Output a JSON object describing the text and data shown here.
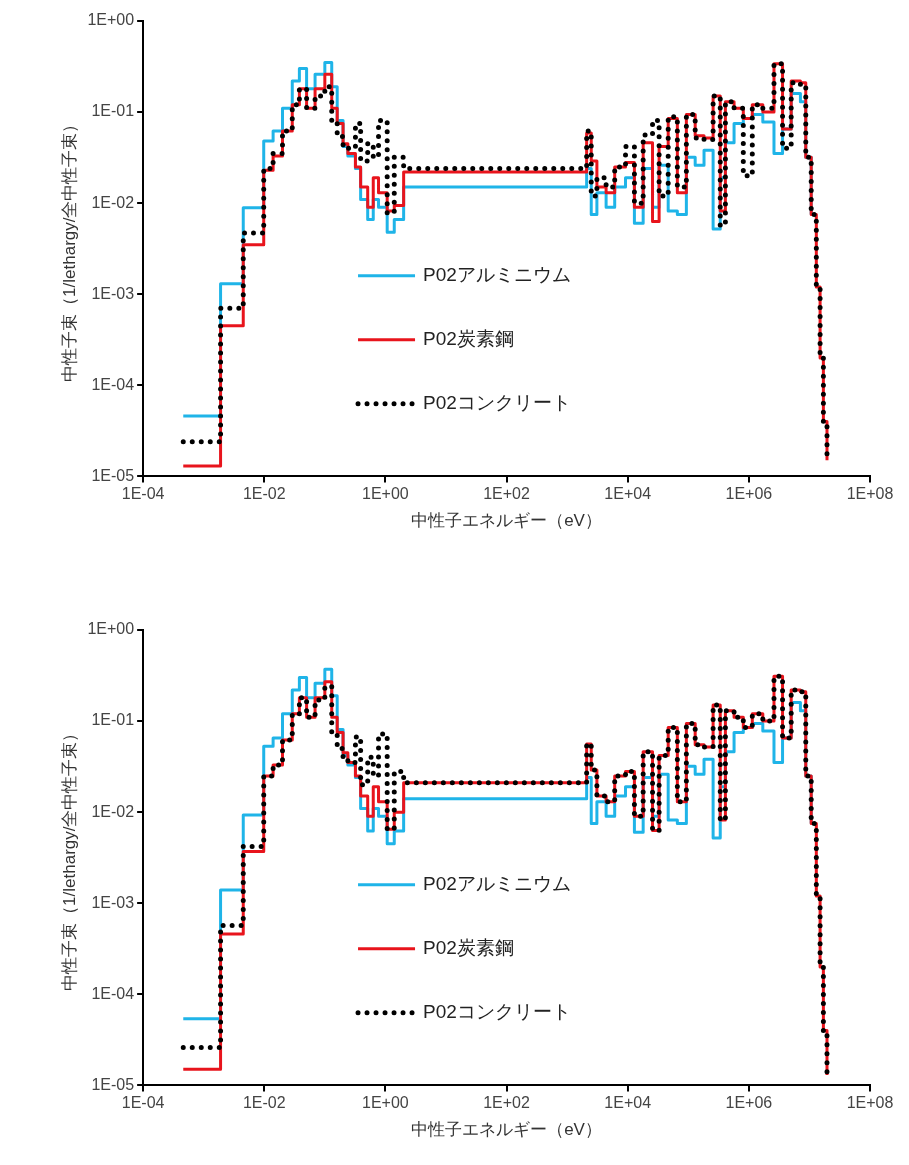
{
  "chart_data": [
    {
      "type": "step",
      "xlabel": "中性子エネルギー（eV）",
      "ylabel": "中性子束（1/lethargy/全中性子束）",
      "log": "xy",
      "grid": false,
      "legend": "center",
      "xlim": [
        0.0001,
        100000000
      ],
      "ylim": [
        1e-05,
        1
      ],
      "xticks": [
        {
          "value": 0.0001,
          "label": "1E-04"
        },
        {
          "value": 0.01,
          "label": "1E-02"
        },
        {
          "value": 1,
          "label": "1E+00"
        },
        {
          "value": 100,
          "label": "1E+02"
        },
        {
          "value": 10000,
          "label": "1E+04"
        },
        {
          "value": 1000000,
          "label": "1E+06"
        },
        {
          "value": 100000000,
          "label": "1E+08"
        }
      ],
      "yticks": [
        {
          "value": 1e-05,
          "label": "1E-05"
        },
        {
          "value": 0.0001,
          "label": "1E-04"
        },
        {
          "value": 0.001,
          "label": "1E-03"
        },
        {
          "value": 0.01,
          "label": "1E-02"
        },
        {
          "value": 0.1,
          "label": "1E-01"
        },
        {
          "value": 1,
          "label": "1E+00"
        }
      ],
      "x": [
        0.00046,
        0.0019,
        0.0045,
        0.0098,
        0.014,
        0.02,
        0.029,
        0.038,
        0.05,
        0.069,
        0.1,
        0.13,
        0.16,
        0.2,
        0.24,
        0.32,
        0.39,
        0.51,
        0.63,
        0.77,
        1.07,
        1.4,
        2,
        2100,
        2500,
        3100,
        4400,
        6100,
        9200,
        12900,
        18000,
        25700,
        33000,
        46600,
        66000,
        93000,
        130000,
        182000,
        257000,
        337000,
        410000,
        570000,
        810000,
        1140000,
        1700000,
        2600000,
        3600000,
        5000000,
        7100000,
        8700000,
        10700000,
        13000000,
        15000000,
        17000000,
        19500000
      ],
      "series": [
        {
          "name": "P02アルミニウム",
          "color": "#1fb4e8",
          "line_style": "solid",
          "values": [
            4.6e-05,
            0.0013,
            0.0089,
            0.048,
            0.062,
            0.11,
            0.22,
            0.3,
            0.18,
            0.26,
            0.35,
            0.19,
            0.081,
            0.042,
            0.033,
            0.024,
            0.011,
            0.0066,
            0.011,
            0.009,
            0.0048,
            0.0066,
            0.015,
            0.024,
            0.0075,
            0.013,
            0.009,
            0.015,
            0.019,
            0.006,
            0.024,
            0.009,
            0.026,
            0.0082,
            0.0075,
            0.032,
            0.026,
            0.038,
            0.0052,
            0.019,
            0.046,
            0.075,
            0.085,
            0.094,
            0.078,
            0.035,
            0.065,
            0.16,
            0.13,
            0.032,
            0.0075,
            null,
            null,
            null,
            null
          ]
        },
        {
          "name": "P02炭素鋼",
          "color": "#e8141c",
          "line_style": "solid",
          "values": [
            1.3e-05,
            0.00045,
            0.0035,
            0.023,
            0.033,
            0.062,
            0.12,
            0.18,
            0.11,
            0.18,
            0.26,
            0.11,
            0.075,
            0.045,
            0.035,
            0.025,
            0.015,
            0.009,
            0.019,
            0.013,
            0.0082,
            0.0094,
            0.022,
            0.059,
            0.029,
            0.015,
            0.013,
            0.025,
            0.028,
            0.009,
            0.046,
            0.0063,
            0.042,
            0.085,
            0.013,
            0.094,
            0.055,
            0.052,
            0.15,
            0.0082,
            0.13,
            0.11,
            0.085,
            0.12,
            0.1,
            0.34,
            0.065,
            0.22,
            0.21,
            0.032,
            0.0075,
            0.0012,
            0.0002,
            4e-05,
            1.5e-05
          ]
        },
        {
          "name": "P02コンクリート",
          "color": "#000000",
          "line_style": "dotted",
          "values": [
            2.4e-05,
            0.0007,
            0.0047,
            0.024,
            0.035,
            0.062,
            0.12,
            0.18,
            0.11,
            0.15,
            0.19,
            0.078,
            0.054,
            0.042,
            0.04,
            0.075,
            0.029,
            0.045,
            0.032,
            0.081,
            0.0078,
            0.032,
            0.024,
            0.062,
            0.012,
            0.019,
            0.015,
            0.025,
            0.042,
            0.01,
            0.056,
            0.081,
            0.012,
            0.089,
            0.015,
            0.094,
            0.052,
            0.05,
            0.15,
            0.0057,
            0.13,
            0.11,
            0.02,
            0.12,
            0.11,
            0.34,
            0.04,
            0.21,
            0.2,
            0.032,
            0.0075,
            0.0012,
            0.0002,
            4e-05,
            1.5e-05
          ]
        }
      ]
    },
    {
      "type": "step",
      "xlabel": "中性子エネルギー（eV）",
      "ylabel": "中性子束（1/lethargy/全中性子束）",
      "log": "xy",
      "grid": false,
      "legend": "center",
      "xlim": [
        0.0001,
        100000000
      ],
      "ylim": [
        1e-05,
        1
      ],
      "xticks": [
        {
          "value": 0.0001,
          "label": "1E-04"
        },
        {
          "value": 0.01,
          "label": "1E-02"
        },
        {
          "value": 1,
          "label": "1E+00"
        },
        {
          "value": 100,
          "label": "1E+02"
        },
        {
          "value": 10000,
          "label": "1E+04"
        },
        {
          "value": 1000000,
          "label": "1E+06"
        },
        {
          "value": 100000000,
          "label": "1E+08"
        }
      ],
      "yticks": [
        {
          "value": 1e-05,
          "label": "1E-05"
        },
        {
          "value": 0.0001,
          "label": "1E-04"
        },
        {
          "value": 0.001,
          "label": "1E-03"
        },
        {
          "value": 0.01,
          "label": "1E-02"
        },
        {
          "value": 0.1,
          "label": "1E-01"
        },
        {
          "value": 1,
          "label": "1E+00"
        }
      ],
      "x": [
        0.00046,
        0.0019,
        0.0045,
        0.0098,
        0.014,
        0.02,
        0.029,
        0.038,
        0.05,
        0.069,
        0.1,
        0.13,
        0.16,
        0.2,
        0.24,
        0.32,
        0.39,
        0.51,
        0.63,
        0.77,
        1.07,
        1.4,
        2,
        2100,
        2500,
        3100,
        4400,
        6100,
        9200,
        12900,
        18000,
        25700,
        33000,
        46600,
        66000,
        93000,
        130000,
        182000,
        257000,
        337000,
        410000,
        570000,
        810000,
        1140000,
        1700000,
        2600000,
        3600000,
        5000000,
        7100000,
        8700000,
        10700000,
        13000000,
        15000000,
        17000000,
        19500000
      ],
      "series": [
        {
          "name": "P02アルミニウム",
          "color": "#1fb4e8",
          "line_style": "solid",
          "values": [
            5.4e-05,
            0.0014,
            0.0093,
            0.053,
            0.065,
            0.12,
            0.22,
            0.3,
            0.18,
            0.26,
            0.37,
            0.19,
            0.081,
            0.042,
            0.033,
            0.024,
            0.011,
            0.0062,
            0.011,
            0.009,
            0.0045,
            0.0062,
            0.014,
            0.024,
            0.0075,
            0.013,
            0.009,
            0.015,
            0.019,
            0.006,
            0.024,
            0.009,
            0.026,
            0.0082,
            0.0075,
            0.032,
            0.026,
            0.038,
            0.0052,
            0.019,
            0.046,
            0.075,
            0.085,
            0.094,
            0.078,
            0.035,
            0.065,
            0.16,
            0.13,
            0.025,
            0.0075,
            null,
            null,
            null,
            null
          ]
        },
        {
          "name": "P02炭素鋼",
          "color": "#e8141c",
          "line_style": "solid",
          "values": [
            1.5e-05,
            0.00046,
            0.0037,
            0.025,
            0.033,
            0.062,
            0.12,
            0.18,
            0.11,
            0.18,
            0.27,
            0.11,
            0.075,
            0.045,
            0.035,
            0.025,
            0.015,
            0.009,
            0.019,
            0.013,
            0.0065,
            0.01,
            0.021,
            0.056,
            0.029,
            0.015,
            0.013,
            0.025,
            0.028,
            0.009,
            0.046,
            0.0063,
            0.042,
            0.085,
            0.013,
            0.094,
            0.055,
            0.052,
            0.15,
            0.0082,
            0.13,
            0.11,
            0.085,
            0.12,
            0.1,
            0.31,
            0.065,
            0.22,
            0.21,
            0.025,
            0.0075,
            0.0012,
            0.0002,
            4e-05,
            1.3e-05
          ]
        },
        {
          "name": "P02コンクリート",
          "color": "#000000",
          "line_style": "dotted",
          "values": [
            2.6e-05,
            0.00057,
            0.0042,
            0.025,
            0.033,
            0.062,
            0.12,
            0.18,
            0.11,
            0.17,
            0.24,
            0.075,
            0.05,
            0.04,
            0.035,
            0.067,
            0.02,
            0.04,
            0.025,
            0.072,
            0.0065,
            0.028,
            0.021,
            0.056,
            0.029,
            0.015,
            0.013,
            0.025,
            0.028,
            0.009,
            0.046,
            0.0063,
            0.042,
            0.085,
            0.013,
            0.094,
            0.055,
            0.052,
            0.15,
            0.0082,
            0.13,
            0.11,
            0.085,
            0.12,
            0.1,
            0.31,
            0.065,
            0.22,
            0.21,
            0.025,
            0.0075,
            0.0012,
            0.0002,
            4e-05,
            1.3e-05
          ]
        }
      ]
    }
  ]
}
